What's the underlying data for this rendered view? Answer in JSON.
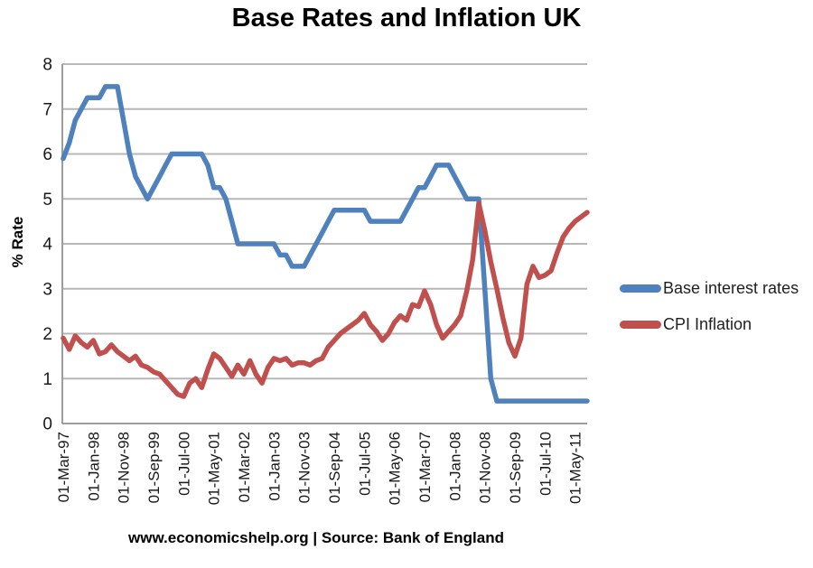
{
  "page": {
    "footer": "www.economicshelp.org | Source: Bank of England"
  },
  "chart_data": {
    "type": "line",
    "title": "Base Rates and Inflation UK",
    "xlabel": "",
    "ylabel": "% Rate",
    "ylim": [
      0,
      8
    ],
    "y_ticks": [
      0,
      1,
      2,
      3,
      4,
      5,
      6,
      7,
      8
    ],
    "grid": "horizontal",
    "legend_position": "right",
    "sampling": "bimonthly",
    "x_start": "01-Mar-97",
    "x_end": "01-Sep-11",
    "points_per_tick": 5,
    "x_tick_labels": [
      "01-Mar-97",
      "01-Jan-98",
      "01-Nov-98",
      "01-Sep-99",
      "01-Jul-00",
      "01-May-01",
      "01-Mar-02",
      "01-Jan-03",
      "01-Nov-03",
      "01-Sep-04",
      "01-Jul-05",
      "01-May-06",
      "01-Mar-07",
      "01-Jan-08",
      "01-Nov-08",
      "01-Sep-09",
      "01-Jul-10",
      "01-May-11"
    ],
    "colors": {
      "grid": "#b7b7b7",
      "axis": "#9d9d9d",
      "tick_text": "#191919"
    },
    "series": [
      {
        "name": "Base interest rates",
        "color": "#4F81BD",
        "values": [
          5.9,
          6.25,
          6.75,
          7.0,
          7.25,
          7.25,
          7.25,
          7.5,
          7.5,
          7.5,
          6.75,
          6.0,
          5.5,
          5.25,
          5.0,
          5.25,
          5.5,
          5.75,
          6.0,
          6.0,
          6.0,
          6.0,
          6.0,
          6.0,
          5.75,
          5.25,
          5.25,
          5.0,
          4.5,
          4.0,
          4.0,
          4.0,
          4.0,
          4.0,
          4.0,
          4.0,
          3.75,
          3.75,
          3.5,
          3.5,
          3.5,
          3.75,
          4.0,
          4.25,
          4.5,
          4.75,
          4.75,
          4.75,
          4.75,
          4.75,
          4.75,
          4.5,
          4.5,
          4.5,
          4.5,
          4.5,
          4.5,
          4.75,
          5.0,
          5.25,
          5.25,
          5.5,
          5.75,
          5.75,
          5.75,
          5.5,
          5.25,
          5.0,
          5.0,
          5.0,
          3.0,
          1.0,
          0.5,
          0.5,
          0.5,
          0.5,
          0.5,
          0.5,
          0.5,
          0.5,
          0.5,
          0.5,
          0.5,
          0.5,
          0.5,
          0.5,
          0.5,
          0.5
        ]
      },
      {
        "name": "CPI Inflation",
        "color": "#C0504D",
        "values": [
          1.9,
          1.65,
          1.95,
          1.8,
          1.7,
          1.85,
          1.55,
          1.6,
          1.75,
          1.6,
          1.5,
          1.4,
          1.5,
          1.3,
          1.25,
          1.15,
          1.1,
          0.95,
          0.8,
          0.65,
          0.6,
          0.9,
          1.0,
          0.8,
          1.2,
          1.55,
          1.45,
          1.25,
          1.05,
          1.3,
          1.1,
          1.4,
          1.1,
          0.9,
          1.25,
          1.45,
          1.4,
          1.45,
          1.3,
          1.35,
          1.35,
          1.3,
          1.4,
          1.45,
          1.7,
          1.85,
          2.0,
          2.1,
          2.2,
          2.3,
          2.45,
          2.2,
          2.05,
          1.85,
          2.0,
          2.25,
          2.4,
          2.3,
          2.65,
          2.6,
          2.95,
          2.65,
          2.2,
          1.9,
          2.05,
          2.2,
          2.4,
          2.95,
          3.65,
          4.9,
          4.3,
          3.6,
          3.0,
          2.35,
          1.8,
          1.5,
          1.9,
          3.1,
          3.5,
          3.25,
          3.3,
          3.4,
          3.8,
          4.15,
          4.35,
          4.5,
          4.6,
          4.7
        ]
      }
    ]
  }
}
